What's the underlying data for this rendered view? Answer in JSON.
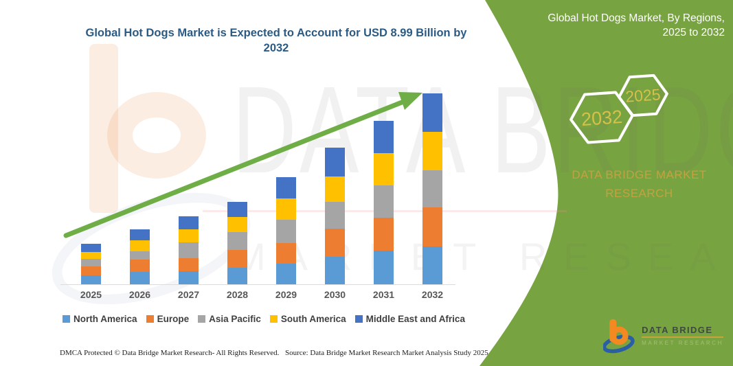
{
  "title": {
    "line1": "Global Hot Dogs Market is Expected to Account for USD 8.99 Billion by",
    "line2": "2032"
  },
  "panel": {
    "heading_line1": "Global Hot Dogs Market, By Regions,",
    "heading_line2": "2025 to 2032",
    "hexagons": [
      {
        "label": "2032"
      },
      {
        "label": "2025"
      }
    ],
    "brand_line1": "DATA BRIDGE MARKET",
    "brand_line2": "RESEARCH",
    "green": "#78A341",
    "gold": "#C5A13F"
  },
  "logo": {
    "name": "DATA BRIDGE",
    "sub": "MARKET RESEARCH"
  },
  "watermark": {
    "line1": "DATA BRIDGE",
    "line2": "MARKET RESEARCH"
  },
  "footer": {
    "left": "DMCA Protected © Data Bridge Market Research-  All Rights Reserved.",
    "right": "Source: Data Bridge Market Research  Market Analysis Study 2025"
  },
  "chart_data": {
    "type": "bar",
    "stacked": true,
    "title": "Global Hot Dogs Market is Expected to Account for USD 8.99 Billion by 2032",
    "categories": [
      "2025",
      "2026",
      "2027",
      "2028",
      "2029",
      "2030",
      "2031",
      "2032"
    ],
    "unit": "USD Billion (estimated from bar heights; 2032 total = 8.99)",
    "series": [
      {
        "name": "North America",
        "color": "#5B9BD5",
        "values": [
          0.45,
          0.61,
          0.64,
          0.81,
          1.0,
          1.32,
          1.61,
          1.8
        ]
      },
      {
        "name": "Europe",
        "color": "#ED7D31",
        "values": [
          0.42,
          0.58,
          0.61,
          0.84,
          0.97,
          1.32,
          1.55,
          1.84
        ]
      },
      {
        "name": "Asia Pacific",
        "color": "#A5A5A5",
        "values": [
          0.35,
          0.39,
          0.74,
          0.84,
          1.1,
          1.26,
          1.51,
          1.74
        ]
      },
      {
        "name": "South America",
        "color": "#FFC000",
        "values": [
          0.32,
          0.52,
          0.61,
          0.71,
          1.0,
          1.19,
          1.51,
          1.8
        ]
      },
      {
        "name": "Middle East and Africa",
        "color": "#4472C4",
        "values": [
          0.39,
          0.52,
          0.61,
          0.71,
          1.0,
          1.35,
          1.51,
          1.81
        ]
      }
    ],
    "totals": [
      1.93,
      2.62,
      3.21,
      3.91,
      5.07,
      6.44,
      7.69,
      8.99
    ],
    "annotations": [
      "green upward trend arrow from 2025 to 2032"
    ],
    "legend_position": "bottom",
    "grid": false,
    "xlabel": "",
    "ylabel": ""
  }
}
